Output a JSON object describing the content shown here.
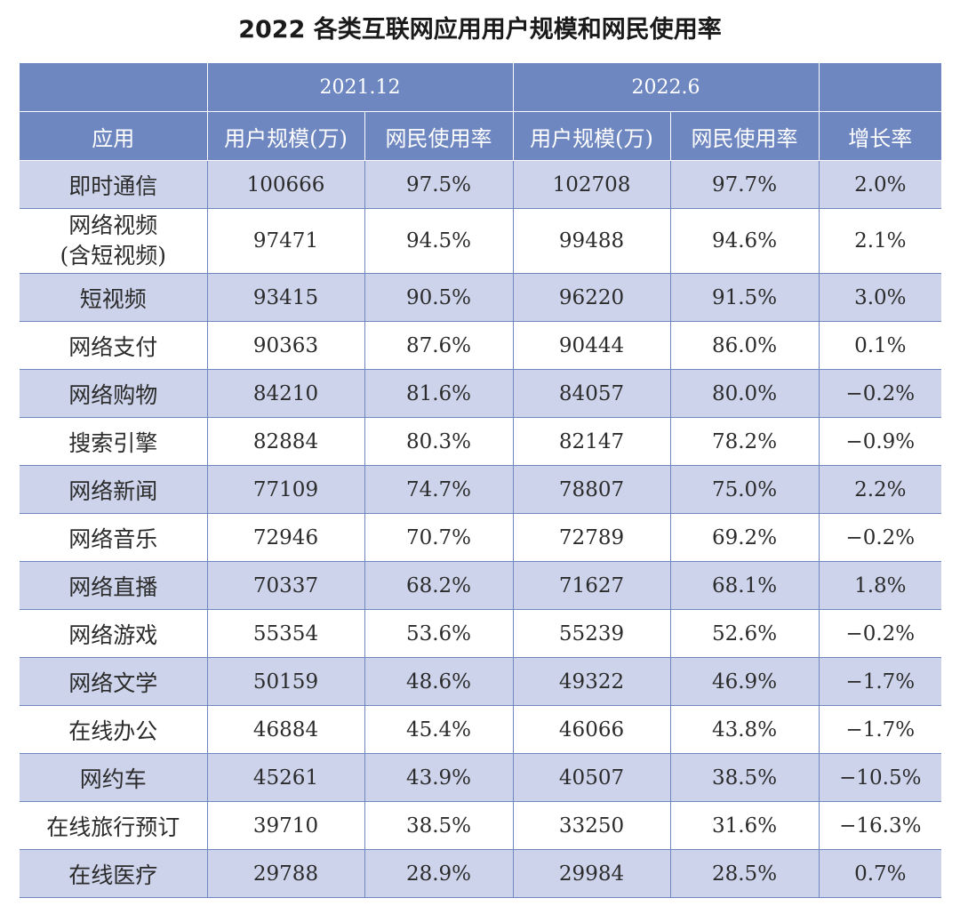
{
  "title": "2022 各类互联网应用用户规模和网民使用率",
  "table": {
    "period_1": "2021.12",
    "period_2": "2022.6",
    "col_app": "应用",
    "col_users_1": "用户规模(万)",
    "col_rate_1": "网民使用率",
    "col_users_2": "用户规模(万)",
    "col_rate_2": "网民使用率",
    "col_growth": "增长率",
    "rows": [
      {
        "app": "即时通信",
        "users_1": "100666",
        "rate_1": "97.5%",
        "users_2": "102708",
        "rate_2": "97.7%",
        "growth": "2.0%"
      },
      {
        "app_line1": "网络视频",
        "app_line2": "(含短视频)",
        "users_1": "97471",
        "rate_1": "94.5%",
        "users_2": "99488",
        "rate_2": "94.6%",
        "growth": "2.1%"
      },
      {
        "app": "短视频",
        "users_1": "93415",
        "rate_1": "90.5%",
        "users_2": "96220",
        "rate_2": "91.5%",
        "growth": "3.0%"
      },
      {
        "app": "网络支付",
        "users_1": "90363",
        "rate_1": "87.6%",
        "users_2": "90444",
        "rate_2": "86.0%",
        "growth": "0.1%"
      },
      {
        "app": "网络购物",
        "users_1": "84210",
        "rate_1": "81.6%",
        "users_2": "84057",
        "rate_2": "80.0%",
        "growth": "−0.2%"
      },
      {
        "app": "搜索引擎",
        "users_1": "82884",
        "rate_1": "80.3%",
        "users_2": "82147",
        "rate_2": "78.2%",
        "growth": "−0.9%"
      },
      {
        "app": "网络新闻",
        "users_1": "77109",
        "rate_1": "74.7%",
        "users_2": "78807",
        "rate_2": "75.0%",
        "growth": "2.2%"
      },
      {
        "app": "网络音乐",
        "users_1": "72946",
        "rate_1": "70.7%",
        "users_2": "72789",
        "rate_2": "69.2%",
        "growth": "−0.2%"
      },
      {
        "app": "网络直播",
        "users_1": "70337",
        "rate_1": "68.2%",
        "users_2": "71627",
        "rate_2": "68.1%",
        "growth": "1.8%"
      },
      {
        "app": "网络游戏",
        "users_1": "55354",
        "rate_1": "53.6%",
        "users_2": "55239",
        "rate_2": "52.6%",
        "growth": "−0.2%"
      },
      {
        "app": "网络文学",
        "users_1": "50159",
        "rate_1": "48.6%",
        "users_2": "49322",
        "rate_2": "46.9%",
        "growth": "−1.7%"
      },
      {
        "app": "在线办公",
        "users_1": "46884",
        "rate_1": "45.4%",
        "users_2": "46066",
        "rate_2": "43.8%",
        "growth": "−1.7%"
      },
      {
        "app": "网约车",
        "users_1": "45261",
        "rate_1": "43.9%",
        "users_2": "40507",
        "rate_2": "38.5%",
        "growth": "−10.5%"
      },
      {
        "app": "在线旅行预订",
        "users_1": "39710",
        "rate_1": "38.5%",
        "users_2": "33250",
        "rate_2": "31.6%",
        "growth": "−16.3%"
      },
      {
        "app": "在线医疗",
        "users_1": "29788",
        "rate_1": "28.9%",
        "users_2": "29984",
        "rate_2": "28.5%",
        "growth": "0.7%"
      }
    ]
  }
}
